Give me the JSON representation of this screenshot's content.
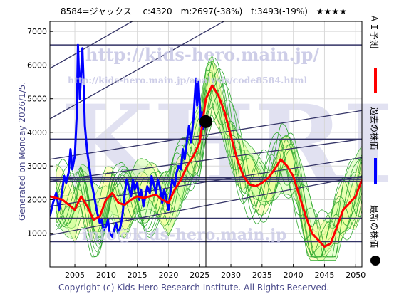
{
  "header": {
    "title": "8584=ジャックス　 c:4320　m:2697(-38%)　t:3493(-19%)　★★★★"
  },
  "side_labels": {
    "ai_forecast": "ＡＩ予測",
    "past_price": "過去の株価",
    "latest_price": "最新の株価"
  },
  "generated_label": "Generated on Monday 2026/1/5.",
  "watermarks": {
    "url": "http://kids-hero.main.jp/",
    "analysis_url": "http://kids-hero.main.jp/analysis/code8584.html",
    "big": "KHRI",
    "email": "info@kids-hero.main.jp"
  },
  "copyright": "Copyright (c) Kids-Hero Research Institute. All Rights Reserved.",
  "colors": {
    "forecast": "#ff0000",
    "past": "#0000ff",
    "latest": "#000000",
    "band_fill": "#ccff99",
    "band_fill2": "#ffff99",
    "band_line": "#33aa33",
    "trend_line": "#333366"
  },
  "chart_data": {
    "type": "line",
    "xlim": [
      2001,
      2051
    ],
    "ylim": [
      0,
      7300
    ],
    "x_ticks": [
      2005,
      2010,
      2015,
      2020,
      2025,
      2030,
      2035,
      2040,
      2045,
      2050
    ],
    "y_ticks": [
      1000,
      2000,
      3000,
      4000,
      5000,
      6000,
      7000
    ],
    "grid": true,
    "current_marker": {
      "x": 2026.0,
      "y": 4320
    },
    "horizontal_levels": [
      6600,
      3800,
      2650,
      2550,
      2600,
      1450,
      750
    ],
    "series": [
      {
        "name": "過去の株価",
        "color": "#0000ff",
        "x": [
          2001.0,
          2001.5,
          2002.0,
          2002.5,
          2003.0,
          2003.3,
          2003.6,
          2004.0,
          2004.3,
          2004.6,
          2005.0,
          2005.3,
          2005.5,
          2005.8,
          2006.0,
          2006.2,
          2006.4,
          2006.6,
          2006.8,
          2007.0,
          2007.3,
          2007.6,
          2008.0,
          2008.3,
          2008.6,
          2009.0,
          2009.3,
          2009.6,
          2010.0,
          2010.3,
          2010.6,
          2011.0,
          2011.3,
          2011.6,
          2012.0,
          2012.3,
          2012.6,
          2013.0,
          2013.3,
          2013.6,
          2014.0,
          2014.3,
          2014.6,
          2015.0,
          2015.3,
          2015.6,
          2016.0,
          2016.3,
          2016.6,
          2017.0,
          2017.3,
          2017.6,
          2018.0,
          2018.3,
          2018.6,
          2019.0,
          2019.3,
          2019.6,
          2020.0,
          2020.3,
          2020.6,
          2021.0,
          2021.3,
          2021.6,
          2022.0,
          2022.3,
          2022.6,
          2023.0,
          2023.3,
          2023.6,
          2024.0,
          2024.2,
          2024.4,
          2024.6,
          2024.8,
          2025.0,
          2025.2,
          2025.4,
          2025.6,
          2025.8,
          2026.0
        ],
        "values": [
          1500,
          1900,
          2200,
          1700,
          2300,
          2700,
          2500,
          2800,
          3500,
          2900,
          3300,
          4500,
          6600,
          5000,
          5800,
          6500,
          5500,
          4200,
          3800,
          3400,
          3000,
          2600,
          2200,
          1900,
          1600,
          1300,
          1400,
          1100,
          1200,
          1400,
          1000,
          900,
          1100,
          1300,
          1000,
          1200,
          1500,
          2200,
          2600,
          2400,
          2100,
          2600,
          2300,
          2500,
          2000,
          2300,
          1800,
          2100,
          2400,
          2200,
          2700,
          2500,
          2200,
          2600,
          2400,
          1900,
          2300,
          2100,
          1700,
          2200,
          2600,
          2400,
          2800,
          3000,
          2900,
          3500,
          3200,
          3800,
          4200,
          3700,
          4400,
          5000,
          5600,
          4800,
          5500,
          4900,
          4200,
          4600,
          4100,
          4300,
          4320
        ]
      },
      {
        "name": "ＡＩ予測",
        "color": "#ff0000",
        "x": [
          2001.0,
          2002.0,
          2003.0,
          2004.0,
          2005.0,
          2006.0,
          2007.0,
          2008.0,
          2009.0,
          2010.0,
          2011.0,
          2012.0,
          2013.0,
          2014.0,
          2015.0,
          2016.0,
          2017.0,
          2018.0,
          2019.0,
          2020.0,
          2021.0,
          2022.0,
          2023.0,
          2024.0,
          2025.0,
          2026.0,
          2027.0,
          2028.0,
          2029.0,
          2030.0,
          2031.0,
          2032.0,
          2033.0,
          2034.0,
          2035.0,
          2036.0,
          2037.0,
          2038.0,
          2039.0,
          2040.0,
          2041.0,
          2042.0,
          2043.0,
          2044.0,
          2045.0,
          2046.0,
          2047.0,
          2048.0,
          2049.0,
          2050.0,
          2051.0
        ],
        "values": [
          2100,
          2050,
          2000,
          1850,
          1700,
          2100,
          1800,
          1400,
          1500,
          2000,
          2200,
          1900,
          1850,
          2000,
          2100,
          2050,
          2100,
          2150,
          2000,
          1900,
          2300,
          2600,
          3000,
          3300,
          3700,
          5000,
          5400,
          5100,
          4600,
          3900,
          3200,
          2700,
          2450,
          2400,
          2500,
          2650,
          2900,
          3200,
          3000,
          2700,
          2100,
          1500,
          1000,
          800,
          600,
          700,
          1200,
          1700,
          1900,
          2100,
          2600
        ]
      }
    ]
  }
}
